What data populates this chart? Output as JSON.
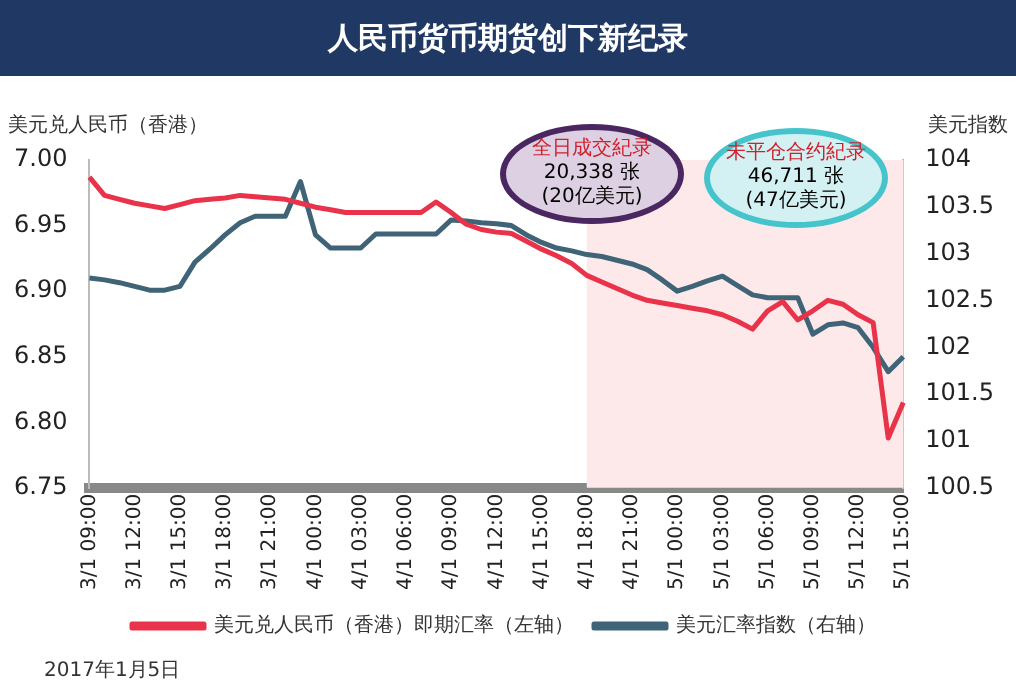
{
  "chart_data": {
    "type": "line",
    "title": "人民币货币期货创下新纪录",
    "ylabel": "美元兑人民币（香港）",
    "y2label": "美元指数",
    "categories": [
      "3/1 09:00",
      null,
      null,
      "3/1 12:00",
      null,
      null,
      "3/1 15:00",
      null,
      null,
      "3/1 18:00",
      null,
      null,
      "3/1 21:00",
      null,
      null,
      "4/1 00:00",
      null,
      null,
      "4/1 03:00",
      null,
      null,
      "4/1 06:00",
      null,
      null,
      "4/1 09:00",
      null,
      null,
      "4/1 12:00",
      null,
      null,
      "4/1 15:00",
      null,
      null,
      "4/1 18:00",
      null,
      null,
      "4/1 21:00",
      null,
      null,
      "5/1 00:00",
      null,
      null,
      "5/1 03:00",
      null,
      null,
      "5/1 06:00",
      null,
      null,
      "5/1 09:00",
      null,
      null,
      "5/1 12:00",
      null,
      null,
      "5/1 15:00"
    ],
    "ylim": [
      6.75,
      7.0
    ],
    "yticks": [
      {
        "value": 6.75,
        "label": "6.75"
      },
      {
        "value": 6.8,
        "label": "6.80"
      },
      {
        "value": 6.85,
        "label": "6.85"
      },
      {
        "value": 6.9,
        "label": "6.90"
      },
      {
        "value": 6.95,
        "label": "6.95"
      },
      {
        "value": 7.0,
        "label": "7.00"
      }
    ],
    "y2lim": [
      100.5,
      104
    ],
    "y2ticks": [
      100.5,
      101,
      101.5,
      102,
      102.5,
      103,
      103.5,
      104
    ],
    "series": [
      {
        "name": "美元兑人民币（香港）即期汇率（左轴）",
        "color": "#e8334a",
        "values": [
          6.987,
          6.973,
          6.97,
          6.967,
          6.965,
          6.963,
          6.966,
          6.969,
          6.97,
          6.971,
          6.973,
          6.972,
          6.971,
          6.97,
          6.967,
          6.964,
          6.962,
          6.96,
          6.96,
          6.96,
          6.96,
          6.96,
          6.96,
          6.968,
          6.96,
          6.951,
          6.947,
          6.945,
          6.944,
          6.938,
          6.932,
          6.927,
          6.921,
          6.912,
          6.907,
          6.902,
          6.897,
          6.893,
          6.891,
          6.889,
          6.887,
          6.885,
          6.882,
          6.877,
          6.871,
          6.885,
          6.892,
          6.878,
          6.885,
          6.893,
          6.89,
          6.882,
          6.876,
          6.788,
          6.815
        ]
      },
      {
        "name": "美元汇率指数（右轴）",
        "color": "#3f6478",
        "axis": "y2",
        "values": [
          102.74,
          102.72,
          102.69,
          102.65,
          102.61,
          102.61,
          102.65,
          102.91,
          103.05,
          103.2,
          103.33,
          103.4,
          103.4,
          103.4,
          103.77,
          103.2,
          103.06,
          103.06,
          103.06,
          103.21,
          103.21,
          103.21,
          103.21,
          103.21,
          103.36,
          103.35,
          103.33,
          103.32,
          103.3,
          103.2,
          103.12,
          103.06,
          103.03,
          102.99,
          102.97,
          102.93,
          102.89,
          102.83,
          102.72,
          102.6,
          102.65,
          102.71,
          102.76,
          102.66,
          102.56,
          102.53,
          102.53,
          102.53,
          102.14,
          102.24,
          102.26,
          102.21,
          102.0,
          101.74,
          101.9
        ]
      }
    ],
    "bands": [
      {
        "axis": "x",
        "from": "4/1 18:00",
        "to": "5/1 15:00",
        "color": "#fde8ea"
      }
    ],
    "annotations": [
      "全日成交紀录\n20,338 张\n(20亿美元)",
      "未平仓合约紀录\n46,711 张\n(47亿美元)",
      "2017年1月5日"
    ],
    "legend": "bottom",
    "marker": "none",
    "grid": false
  }
}
